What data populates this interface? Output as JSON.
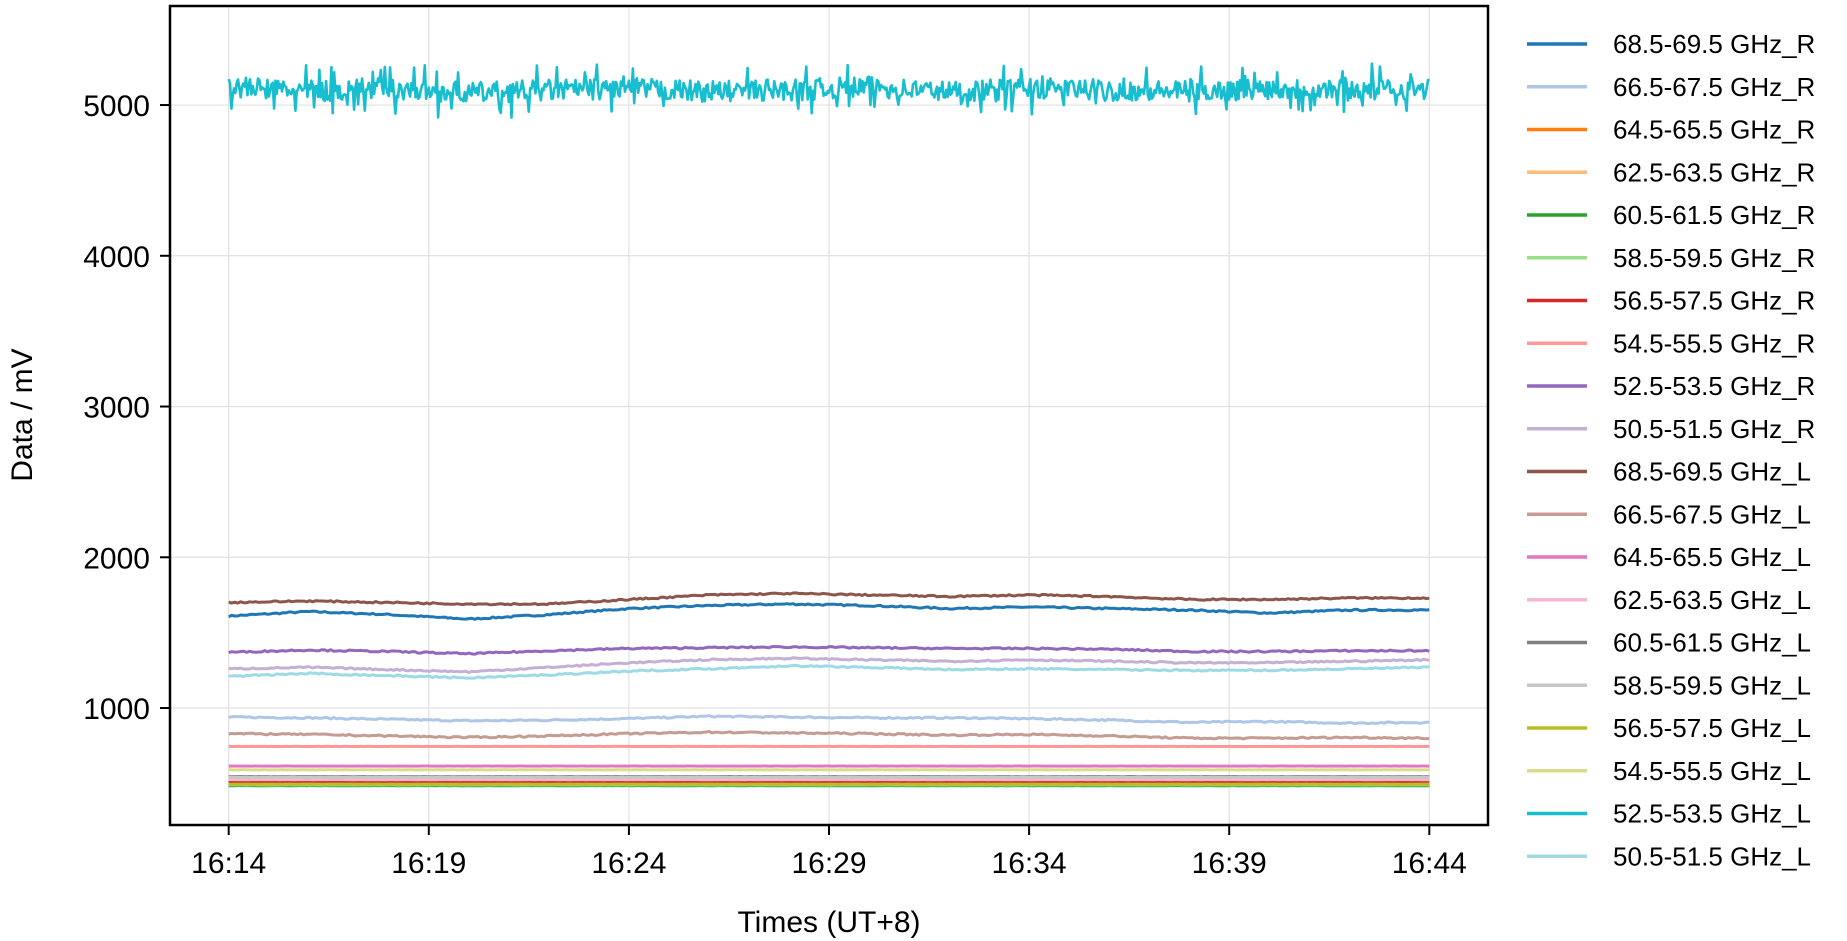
{
  "chart_data": {
    "type": "line",
    "title": "",
    "xlabel": "Times (UT+8)",
    "ylabel": "Data / mV",
    "ylim": [
      224,
      5657
    ],
    "xlim": [
      "16:12:32",
      "16:45:28"
    ],
    "xticks": [
      "16:14",
      "16:19",
      "16:24",
      "16:29",
      "16:34",
      "16:39",
      "16:44"
    ],
    "yticks": [
      1000,
      2000,
      3000,
      4000,
      5000
    ],
    "grid": true,
    "legend_position": "outside-right",
    "x": [
      "16:14",
      "16:16",
      "16:18",
      "16:20",
      "16:22",
      "16:24",
      "16:26",
      "16:28",
      "16:30",
      "16:32",
      "16:34",
      "16:36",
      "16:38",
      "16:40",
      "16:42",
      "16:44"
    ],
    "series": [
      {
        "name": "68.5-69.5 GHz_R",
        "color": "#1f77b4",
        "values": [
          1610,
          1640,
          1620,
          1590,
          1620,
          1660,
          1680,
          1690,
          1680,
          1660,
          1670,
          1660,
          1650,
          1630,
          1650,
          1650
        ]
      },
      {
        "name": "66.5-67.5 GHz_R",
        "color": "#aec7e8",
        "values": [
          940,
          935,
          925,
          915,
          920,
          930,
          945,
          940,
          935,
          935,
          930,
          920,
          905,
          910,
          900,
          905
        ]
      },
      {
        "name": "64.5-65.5 GHz_R",
        "color": "#ff7f0e",
        "values": [
          490,
          490,
          490,
          490,
          490,
          490,
          490,
          490,
          490,
          490,
          490,
          490,
          490,
          490,
          490,
          490
        ]
      },
      {
        "name": "62.5-63.5 GHz_R",
        "color": "#ffbb78",
        "values": [
          495,
          495,
          495,
          495,
          495,
          495,
          495,
          495,
          495,
          495,
          495,
          495,
          495,
          495,
          495,
          495
        ]
      },
      {
        "name": "60.5-61.5 GHz_R",
        "color": "#2ca02c",
        "values": [
          485,
          485,
          485,
          485,
          485,
          485,
          485,
          485,
          485,
          485,
          485,
          485,
          485,
          485,
          485,
          485
        ]
      },
      {
        "name": "58.5-59.5 GHz_R",
        "color": "#98df8a",
        "values": [
          490,
          490,
          490,
          490,
          490,
          490,
          490,
          490,
          490,
          490,
          490,
          490,
          490,
          490,
          490,
          490
        ]
      },
      {
        "name": "56.5-57.5 GHz_R",
        "color": "#d62728",
        "values": [
          510,
          510,
          510,
          510,
          510,
          510,
          510,
          510,
          510,
          510,
          510,
          510,
          510,
          510,
          510,
          510
        ]
      },
      {
        "name": "54.5-55.5 GHz_R",
        "color": "#ff9896",
        "values": [
          745,
          745,
          745,
          745,
          745,
          745,
          745,
          745,
          745,
          745,
          745,
          745,
          745,
          745,
          745,
          745
        ]
      },
      {
        "name": "52.5-53.5 GHz_R",
        "color": "#9467bd",
        "values": [
          1370,
          1385,
          1375,
          1360,
          1380,
          1395,
          1400,
          1405,
          1400,
          1395,
          1395,
          1390,
          1375,
          1375,
          1380,
          1380
        ]
      },
      {
        "name": "50.5-51.5 GHz_R",
        "color": "#c5b0d5",
        "values": [
          1260,
          1270,
          1255,
          1240,
          1270,
          1300,
          1320,
          1330,
          1320,
          1310,
          1320,
          1310,
          1300,
          1300,
          1310,
          1320
        ]
      },
      {
        "name": "68.5-69.5 GHz_L",
        "color": "#8c564b",
        "values": [
          1700,
          1710,
          1700,
          1690,
          1690,
          1720,
          1750,
          1760,
          1750,
          1740,
          1750,
          1740,
          1720,
          1720,
          1730,
          1730
        ]
      },
      {
        "name": "66.5-67.5 GHz_L",
        "color": "#c49c94",
        "values": [
          830,
          825,
          815,
          805,
          815,
          830,
          840,
          835,
          830,
          820,
          825,
          815,
          800,
          800,
          805,
          800
        ]
      },
      {
        "name": "64.5-65.5 GHz_L",
        "color": "#e377c2",
        "values": [
          615,
          615,
          615,
          615,
          615,
          615,
          615,
          615,
          615,
          615,
          615,
          615,
          615,
          615,
          615,
          615
        ]
      },
      {
        "name": "62.5-63.5 GHz_L",
        "color": "#f7b6d2",
        "values": [
          525,
          525,
          525,
          525,
          525,
          525,
          525,
          525,
          525,
          525,
          525,
          525,
          525,
          525,
          525,
          525
        ]
      },
      {
        "name": "60.5-61.5 GHz_L",
        "color": "#7f7f7f",
        "values": [
          545,
          545,
          545,
          545,
          545,
          545,
          545,
          545,
          545,
          545,
          545,
          545,
          545,
          545,
          545,
          545
        ]
      },
      {
        "name": "58.5-59.5 GHz_L",
        "color": "#c7c7c7",
        "values": [
          540,
          540,
          540,
          540,
          540,
          540,
          540,
          540,
          540,
          540,
          540,
          540,
          540,
          540,
          540,
          540
        ]
      },
      {
        "name": "56.5-57.5 GHz_L",
        "color": "#bcbd22",
        "values": [
          495,
          495,
          495,
          495,
          495,
          495,
          495,
          495,
          495,
          495,
          495,
          495,
          495,
          495,
          495,
          495
        ]
      },
      {
        "name": "54.5-55.5 GHz_L",
        "color": "#dbdb8d",
        "values": [
          590,
          590,
          590,
          590,
          590,
          590,
          590,
          590,
          590,
          590,
          590,
          590,
          590,
          590,
          590,
          590
        ]
      },
      {
        "name": "52.5-53.5 GHz_L",
        "color": "#17becf",
        "values": [
          5120,
          5090,
          5110,
          5080,
          5100,
          5110,
          5090,
          5100,
          5120,
          5090,
          5110,
          5100,
          5090,
          5110,
          5100,
          5110
        ]
      },
      {
        "name": "50.5-51.5 GHz_L",
        "color": "#9edae5",
        "values": [
          1210,
          1230,
          1215,
          1200,
          1220,
          1245,
          1260,
          1280,
          1270,
          1255,
          1260,
          1255,
          1250,
          1250,
          1260,
          1270
        ]
      }
    ]
  }
}
